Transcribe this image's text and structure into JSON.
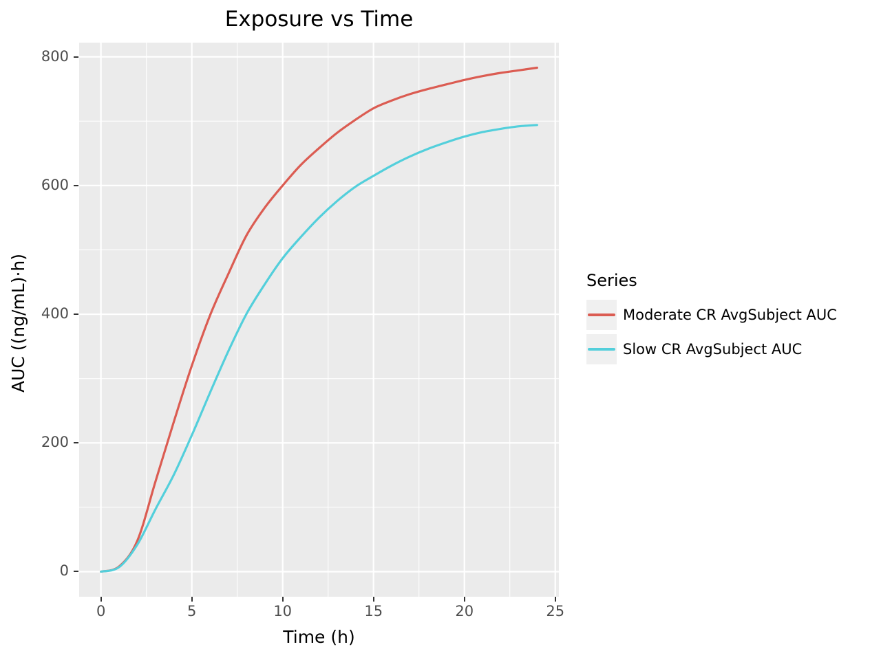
{
  "title": "Exposure vs Time",
  "chart_data": {
    "type": "line",
    "title": "Exposure vs Time",
    "xlabel": "Time (h)",
    "ylabel": "AUC ((ng/mL)·h)",
    "xlim": [
      -1.2,
      25.2
    ],
    "ylim": [
      -39,
      822
    ],
    "x_ticks_major": [
      0,
      5,
      10,
      15,
      20,
      25
    ],
    "x_ticks_minor": [
      2.5,
      7.5,
      12.5,
      17.5,
      22.5
    ],
    "y_ticks_major": [
      0,
      200,
      400,
      600,
      800
    ],
    "y_ticks_minor": [
      100,
      300,
      500,
      700
    ],
    "grid": "major+minor white on grey panel",
    "panel_background": "#EBEBEB",
    "gridline_color": "#FFFFFF",
    "tick_label_color": "#4D4D4D",
    "legend_title": "Series",
    "legend_position": "right",
    "legend_key_fill": "#F0F0F0",
    "x": [
      0,
      1,
      2,
      3,
      4,
      5,
      6,
      7,
      8,
      9,
      10,
      11,
      12,
      13,
      14,
      15,
      16,
      17,
      18,
      19,
      20,
      21,
      22,
      23,
      24
    ],
    "series": [
      {
        "name": "Moderate CR AvgSubject AUC",
        "color": "#DB5C52",
        "values": [
          0,
          8,
          48,
          140,
          232,
          320,
          398,
          462,
          522,
          565,
          600,
          632,
          658,
          682,
          702,
          720,
          732,
          742,
          750,
          757,
          764,
          770,
          775,
          779,
          783
        ]
      },
      {
        "name": "Slow CR AvgSubject AUC",
        "color": "#53CFDB",
        "values": [
          0,
          7,
          42,
          97,
          150,
          212,
          278,
          342,
          400,
          446,
          487,
          520,
          550,
          576,
          598,
          615,
          631,
          645,
          657,
          667,
          676,
          683,
          688,
          692,
          694
        ]
      }
    ]
  }
}
